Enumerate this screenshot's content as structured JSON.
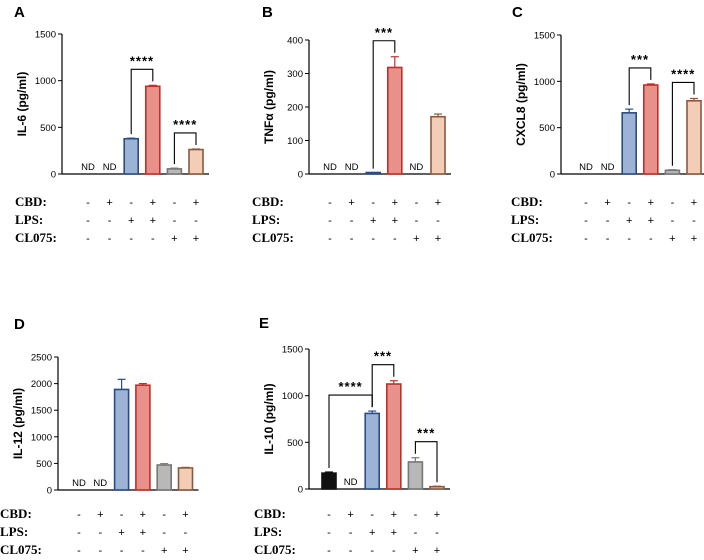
{
  "figure": {
    "row_labels": [
      "CBD:",
      "LPS:",
      "CL075:"
    ],
    "conditions": [
      {
        "CBD": "-",
        "LPS": "-",
        "CL075": "-"
      },
      {
        "CBD": "+",
        "LPS": "-",
        "CL075": "-"
      },
      {
        "CBD": "-",
        "LPS": "+",
        "CL075": "-"
      },
      {
        "CBD": "+",
        "LPS": "+",
        "CL075": "-"
      },
      {
        "CBD": "-",
        "LPS": "-",
        "CL075": "+"
      },
      {
        "CBD": "+",
        "LPS": "-",
        "CL075": "+"
      }
    ],
    "colors": {
      "black_fill": "#111111",
      "blue_fill": "#9db3d6",
      "blue_edge": "#2a4c85",
      "red_fill": "#e8908a",
      "red_edge": "#c0302a",
      "gray_fill": "#b8b8b8",
      "gray_edge": "#777777",
      "peach_fill": "#f4cdb6",
      "peach_edge": "#8a5a40"
    }
  },
  "chart_data": [
    {
      "panel": "A",
      "type": "bar",
      "ylabel": "IL-6 (pg/ml)",
      "ylim": [
        0,
        1500
      ],
      "yticks": [
        0,
        500,
        1000,
        1500
      ],
      "values": [
        0,
        0,
        378,
        940,
        55,
        262
      ],
      "errors": [
        0,
        0,
        6,
        10,
        8,
        6
      ],
      "labels": [
        "ND",
        "ND",
        "",
        "",
        "",
        ""
      ],
      "bar_colors": [
        "blue",
        "blue",
        "blue",
        "red",
        "gray",
        "peach"
      ],
      "significance": [
        {
          "from": 2,
          "to": 3,
          "text": "****"
        },
        {
          "from": 4,
          "to": 5,
          "text": "****"
        }
      ]
    },
    {
      "panel": "B",
      "type": "bar",
      "ylabel": "TNFα (pg/ml)",
      "ylim": [
        0,
        400
      ],
      "yticks": [
        0,
        100,
        200,
        300,
        400
      ],
      "values": [
        0,
        0,
        3,
        318,
        0,
        171
      ],
      "errors": [
        0,
        0,
        1,
        32,
        0,
        8
      ],
      "labels": [
        "ND",
        "ND",
        "",
        "",
        "ND",
        ""
      ],
      "bar_colors": [
        "blue",
        "blue",
        "blue",
        "red",
        "gray",
        "peach"
      ],
      "significance": [
        {
          "from": 2,
          "to": 3,
          "text": "***"
        }
      ]
    },
    {
      "panel": "C",
      "type": "bar",
      "ylabel": "CXCL8 (pg/ml)",
      "ylim": [
        0,
        1500
      ],
      "yticks": [
        0,
        500,
        1000,
        1500
      ],
      "values": [
        0,
        0,
        660,
        960,
        40,
        790
      ],
      "errors": [
        0,
        0,
        40,
        12,
        6,
        25
      ],
      "labels": [
        "ND",
        "ND",
        "",
        "",
        "",
        ""
      ],
      "bar_colors": [
        "blue",
        "blue",
        "blue",
        "red",
        "gray",
        "peach"
      ],
      "significance": [
        {
          "from": 2,
          "to": 3,
          "text": "***"
        },
        {
          "from": 4,
          "to": 5,
          "text": "****"
        }
      ]
    },
    {
      "panel": "D",
      "type": "bar",
      "ylabel": "IL-12 (pg/ml)",
      "ylim": [
        0,
        2500
      ],
      "yticks": [
        0,
        500,
        1000,
        1500,
        2000,
        2500
      ],
      "values": [
        0,
        0,
        1890,
        1970,
        470,
        415
      ],
      "errors": [
        0,
        0,
        190,
        30,
        25,
        10
      ],
      "labels": [
        "ND",
        "ND",
        "",
        "",
        "",
        ""
      ],
      "bar_colors": [
        "blue",
        "blue",
        "blue",
        "red",
        "gray",
        "peach"
      ],
      "significance": []
    },
    {
      "panel": "E",
      "type": "bar",
      "ylabel": "IL-10 (pg/ml)",
      "ylim": [
        0,
        1500
      ],
      "yticks": [
        0,
        500,
        1000,
        1500
      ],
      "values": [
        170,
        0,
        810,
        1125,
        290,
        25
      ],
      "errors": [
        12,
        0,
        25,
        35,
        45,
        5
      ],
      "labels": [
        "",
        "ND",
        "",
        "",
        "",
        ""
      ],
      "bar_colors": [
        "black",
        "blue",
        "blue",
        "red",
        "gray",
        "peach"
      ],
      "significance": [
        {
          "from": 0,
          "to": 2,
          "text": "****"
        },
        {
          "from": 2,
          "to": 3,
          "text": "***"
        },
        {
          "from": 4,
          "to": 5,
          "text": "***"
        }
      ]
    }
  ]
}
